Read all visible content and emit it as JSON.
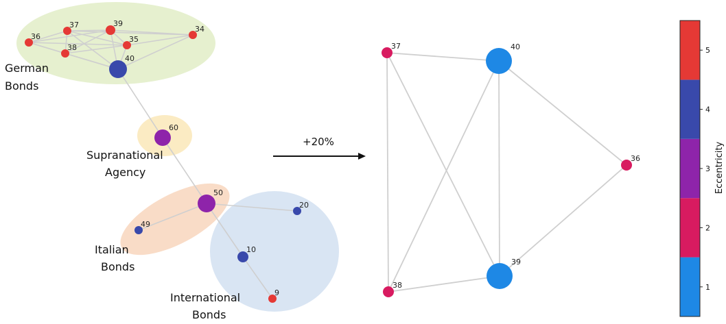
{
  "left_network": {
    "groups": [
      {
        "id": "german",
        "color": "#e6f0cf",
        "label_lines": [
          "German",
          "Bonds"
        ]
      },
      {
        "id": "supra",
        "color": "#fbebc3",
        "label_lines": [
          "Supranational",
          "Agency"
        ]
      },
      {
        "id": "italian",
        "color": "#f9dcc7",
        "label_lines": [
          "Italian",
          "Bonds"
        ]
      },
      {
        "id": "international",
        "color": "#d9e5f3",
        "label_lines": [
          "International",
          "Bonds"
        ]
      }
    ],
    "nodes": [
      {
        "id": "36",
        "label": "36",
        "eccentricity": 5
      },
      {
        "id": "37",
        "label": "37",
        "eccentricity": 5
      },
      {
        "id": "39",
        "label": "39",
        "eccentricity": 5
      },
      {
        "id": "35",
        "label": "35",
        "eccentricity": 5
      },
      {
        "id": "34",
        "label": "34",
        "eccentricity": 5
      },
      {
        "id": "38",
        "label": "38",
        "eccentricity": 5
      },
      {
        "id": "40",
        "label": "40",
        "eccentricity": 4
      },
      {
        "id": "60",
        "label": "60",
        "eccentricity": 3
      },
      {
        "id": "50",
        "label": "50",
        "eccentricity": 3
      },
      {
        "id": "49",
        "label": "49",
        "eccentricity": 4
      },
      {
        "id": "20",
        "label": "20",
        "eccentricity": 4
      },
      {
        "id": "10",
        "label": "10",
        "eccentricity": 4
      },
      {
        "id": "9",
        "label": "9",
        "eccentricity": 5
      }
    ],
    "edges": [
      [
        "36",
        "37"
      ],
      [
        "36",
        "39"
      ],
      [
        "36",
        "38"
      ],
      [
        "36",
        "40"
      ],
      [
        "36",
        "35"
      ],
      [
        "37",
        "39"
      ],
      [
        "37",
        "38"
      ],
      [
        "37",
        "35"
      ],
      [
        "37",
        "40"
      ],
      [
        "37",
        "34"
      ],
      [
        "39",
        "35"
      ],
      [
        "39",
        "38"
      ],
      [
        "39",
        "40"
      ],
      [
        "39",
        "34"
      ],
      [
        "35",
        "38"
      ],
      [
        "35",
        "40"
      ],
      [
        "35",
        "34"
      ],
      [
        "38",
        "40"
      ],
      [
        "34",
        "40"
      ],
      [
        "40",
        "60"
      ],
      [
        "60",
        "50"
      ],
      [
        "50",
        "49"
      ],
      [
        "50",
        "20"
      ],
      [
        "50",
        "10"
      ],
      [
        "10",
        "9"
      ]
    ]
  },
  "arrow": {
    "label": "+20%"
  },
  "right_network": {
    "nodes": [
      {
        "id": "37",
        "label": "37",
        "eccentricity": 2
      },
      {
        "id": "40",
        "label": "40",
        "eccentricity": 1
      },
      {
        "id": "36",
        "label": "36",
        "eccentricity": 2
      },
      {
        "id": "39",
        "label": "39",
        "eccentricity": 1
      },
      {
        "id": "38",
        "label": "38",
        "eccentricity": 2
      }
    ],
    "edges": [
      [
        "37",
        "40"
      ],
      [
        "37",
        "39"
      ],
      [
        "37",
        "38"
      ],
      [
        "40",
        "36"
      ],
      [
        "40",
        "39"
      ],
      [
        "40",
        "38"
      ],
      [
        "36",
        "39"
      ],
      [
        "38",
        "39"
      ]
    ]
  },
  "colorbar": {
    "title": "Eccentricity",
    "ticks": [
      "1",
      "2",
      "3",
      "4",
      "5"
    ],
    "colors": [
      "#1e88e5",
      "#d81b60",
      "#8e24aa",
      "#3949ab",
      "#e53935"
    ]
  }
}
